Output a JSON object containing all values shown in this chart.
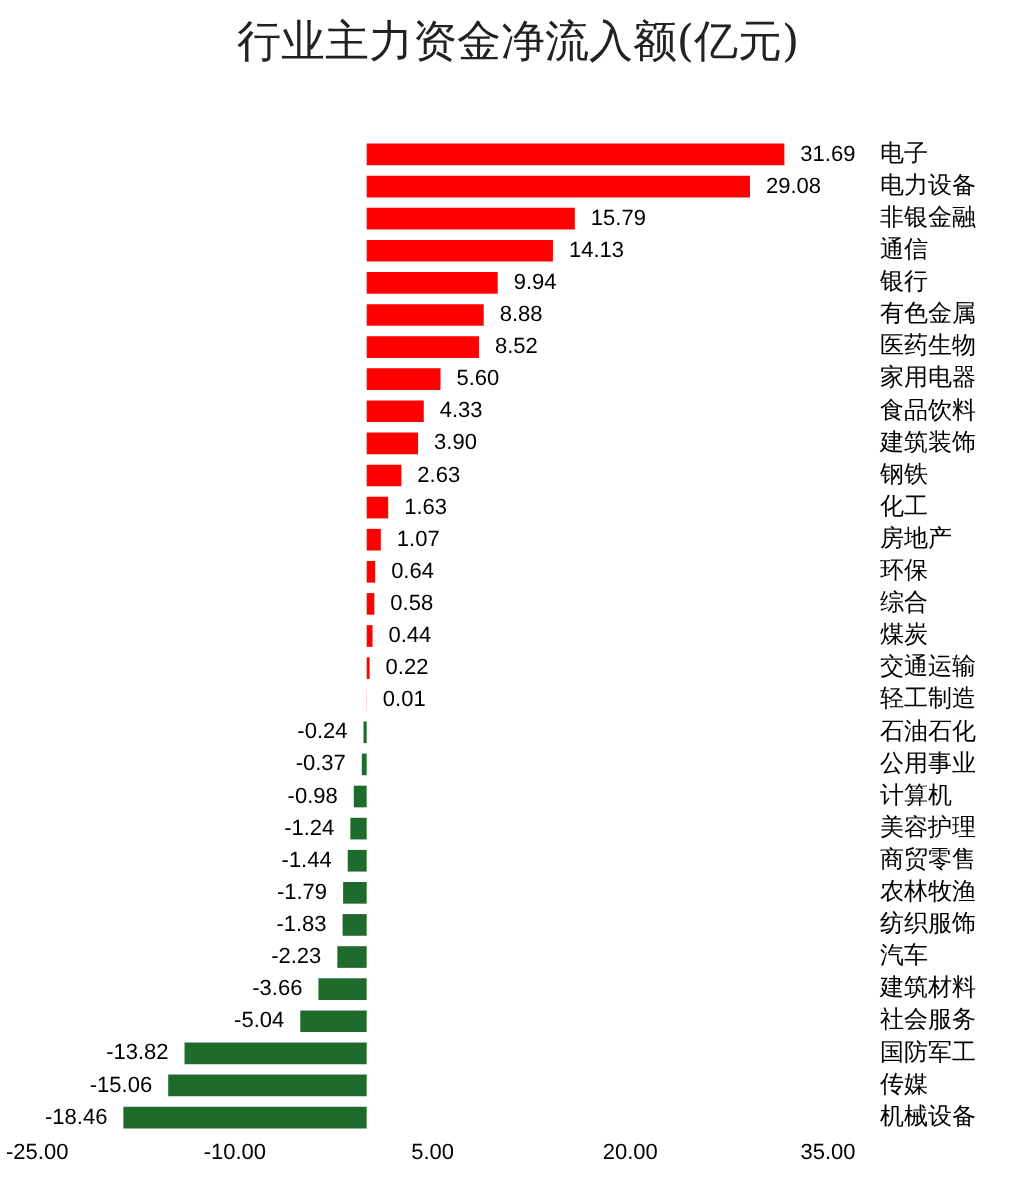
{
  "chart_data": {
    "type": "bar",
    "orientation": "horizontal",
    "title": "行业主力资金净流入额(亿元)",
    "categories": [
      "电子",
      "电力设备",
      "非银金融",
      "通信",
      "银行",
      "有色金属",
      "医药生物",
      "家用电器",
      "食品饮料",
      "建筑装饰",
      "钢铁",
      "化工",
      "房地产",
      "环保",
      "综合",
      "煤炭",
      "交通运输",
      "轻工制造",
      "石油石化",
      "公用事业",
      "计算机",
      "美容护理",
      "商贸零售",
      "农林牧渔",
      "纺织服饰",
      "汽车",
      "建筑材料",
      "社会服务",
      "国防军工",
      "传媒",
      "机械设备"
    ],
    "values": [
      31.69,
      29.08,
      15.79,
      14.13,
      9.94,
      8.88,
      8.52,
      5.6,
      4.33,
      3.9,
      2.63,
      1.63,
      1.07,
      0.64,
      0.58,
      0.44,
      0.22,
      0.01,
      -0.24,
      -0.37,
      -0.98,
      -1.24,
      -1.44,
      -1.79,
      -1.83,
      -2.23,
      -3.66,
      -5.04,
      -13.82,
      -15.06,
      -18.46
    ],
    "value_labels": [
      "31.69",
      "29.08",
      "15.79",
      "14.13",
      "9.94",
      "8.88",
      "8.52",
      "5.60",
      "4.33",
      "3.90",
      "2.63",
      "1.63",
      "1.07",
      "0.64",
      "0.58",
      "0.44",
      "0.22",
      "0.01",
      "-0.24",
      "-0.37",
      "-0.98",
      "-1.24",
      "-1.44",
      "-1.79",
      "-1.83",
      "-2.23",
      "-3.66",
      "-5.04",
      "-13.82",
      "-15.06",
      "-18.46"
    ],
    "colors": [
      "#ff0000",
      "#ff0000",
      "#ff0000",
      "#ff0000",
      "#ff0000",
      "#ff0000",
      "#ff0000",
      "#ff0000",
      "#ff0000",
      "#ff0000",
      "#ff0000",
      "#ff0000",
      "#ff0000",
      "#ff0000",
      "#ff0000",
      "#ff0000",
      "#ff0000",
      "#ff0000",
      "#1f6b2b",
      "#1f6b2b",
      "#1f6b2b",
      "#1f6b2b",
      "#1f6b2b",
      "#1f6b2b",
      "#1f6b2b",
      "#1f6b2b",
      "#1f6b2b",
      "#1f6b2b",
      "#1f6b2b",
      "#1f6b2b",
      "#1f6b2b"
    ],
    "xlim": [
      -25,
      35
    ],
    "xticks": [
      {
        "value": -25,
        "label": "-25.00"
      },
      {
        "value": -10,
        "label": "-10.00"
      },
      {
        "value": 5,
        "label": "5.00"
      },
      {
        "value": 20,
        "label": "20.00"
      },
      {
        "value": 35,
        "label": "35.00"
      }
    ],
    "grid": false,
    "legend": false
  }
}
